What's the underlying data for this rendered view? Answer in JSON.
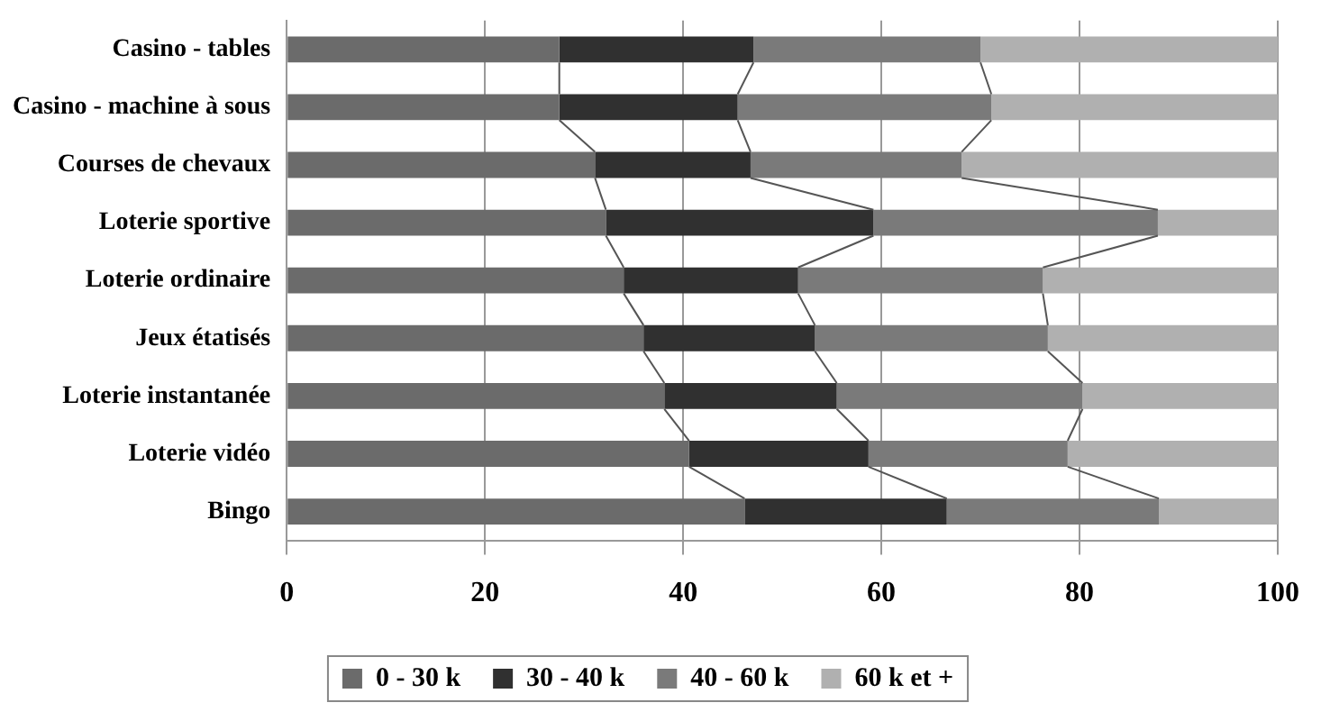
{
  "chart_data": {
    "type": "bar",
    "orientation": "horizontal",
    "stacked": true,
    "categories": [
      "Casino - tables",
      "Casino - machine à sous",
      "Courses de chevaux",
      "Loterie sportive",
      "Loterie ordinaire",
      "Jeux étatisés",
      "Loterie instantanée",
      "Loterie vidéo",
      "Bingo"
    ],
    "series": [
      {
        "name": "0 - 30 k",
        "color": "#6b6b6b",
        "values": [
          27.5,
          27.5,
          31.1,
          32.2,
          34.0,
          36.0,
          38.1,
          40.6,
          46.2
        ]
      },
      {
        "name": "30 - 40 k",
        "color": "#303030",
        "values": [
          19.6,
          18.0,
          15.7,
          27.0,
          17.6,
          17.3,
          17.4,
          18.1,
          20.4
        ]
      },
      {
        "name": "40 - 60 k",
        "color": "#7a7a7a",
        "values": [
          22.9,
          25.6,
          21.3,
          28.7,
          24.7,
          23.5,
          24.8,
          20.1,
          21.4
        ]
      },
      {
        "name": "60 k et +",
        "color": "#b0b0b0",
        "values": [
          30.0,
          28.9,
          31.9,
          12.1,
          23.7,
          23.2,
          19.7,
          21.2,
          12.0
        ]
      }
    ],
    "xlim": [
      0,
      100
    ],
    "xticks": [
      0,
      20,
      40,
      60,
      80,
      100
    ],
    "grid": "x",
    "legend": "bottom"
  }
}
